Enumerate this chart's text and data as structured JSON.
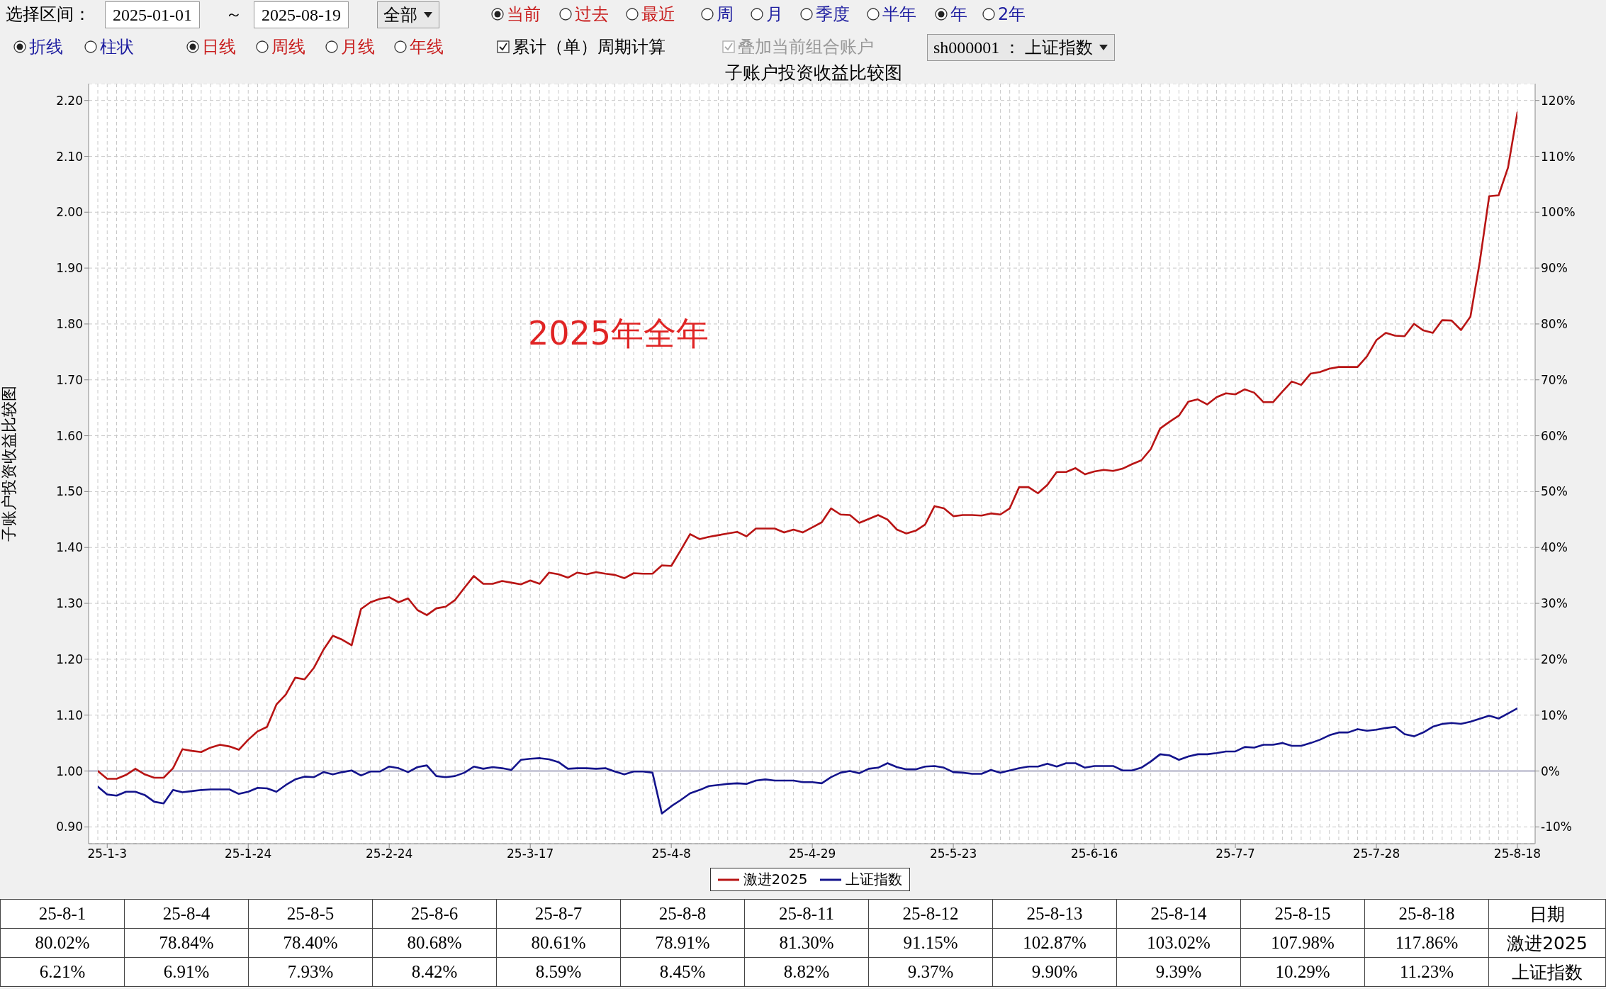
{
  "chart_data": {
    "type": "line",
    "title": "子账户投资收益比较图",
    "ylabel": "子账户投资收益比较图",
    "categories": [
      null,
      "25-1-3",
      null,
      null,
      null,
      null,
      null,
      null,
      null,
      null,
      null,
      null,
      null,
      null,
      null,
      null,
      "25-1-24",
      null,
      null,
      null,
      null,
      null,
      null,
      null,
      null,
      null,
      null,
      null,
      null,
      null,
      null,
      "25-2-24",
      null,
      null,
      null,
      null,
      null,
      null,
      null,
      null,
      null,
      null,
      null,
      null,
      null,
      null,
      "25-3-17",
      null,
      null,
      null,
      null,
      null,
      null,
      null,
      null,
      null,
      null,
      null,
      null,
      null,
      null,
      "25-4-8",
      null,
      null,
      null,
      null,
      null,
      null,
      null,
      null,
      null,
      null,
      null,
      null,
      null,
      null,
      "25-4-29",
      null,
      null,
      null,
      null,
      null,
      null,
      null,
      null,
      null,
      null,
      null,
      null,
      null,
      null,
      "25-5-23",
      null,
      null,
      null,
      null,
      null,
      null,
      null,
      null,
      null,
      null,
      null,
      null,
      null,
      null,
      "25-6-16",
      null,
      null,
      null,
      null,
      null,
      null,
      null,
      null,
      null,
      null,
      null,
      null,
      null,
      null,
      "25-7-7",
      null,
      null,
      null,
      null,
      null,
      null,
      null,
      null,
      null,
      null,
      null,
      null,
      null,
      null,
      "25-7-28",
      null,
      null,
      null,
      null,
      null,
      null,
      null,
      null,
      null,
      null,
      null,
      null,
      null,
      null,
      "25-8-18"
    ],
    "series": [
      {
        "name": "激进2025",
        "color": "#b81414",
        "axis": "y2",
        "values": [
          0.0,
          -1.4,
          -1.4,
          -0.7,
          0.4,
          -0.6,
          -1.2,
          -1.2,
          0.5,
          3.9,
          3.6,
          3.4,
          4.2,
          4.7,
          4.4,
          3.8,
          5.6,
          7.1,
          7.9,
          11.9,
          13.7,
          16.7,
          16.4,
          18.5,
          21.7,
          24.2,
          23.5,
          22.5,
          29.0,
          30.2,
          30.8,
          31.1,
          30.2,
          30.9,
          28.8,
          27.9,
          29.1,
          29.4,
          30.6,
          32.8,
          34.9,
          33.5,
          33.5,
          34.0,
          33.7,
          33.4,
          34.1,
          33.5,
          35.5,
          35.2,
          34.6,
          35.5,
          35.2,
          35.6,
          35.3,
          35.1,
          34.5,
          35.4,
          35.3,
          35.3,
          36.8,
          36.7,
          39.5,
          42.4,
          41.5,
          41.9,
          42.2,
          42.5,
          42.8,
          42.0,
          43.4,
          43.4,
          43.4,
          42.7,
          43.2,
          42.7,
          43.6,
          44.5,
          47.0,
          45.9,
          45.8,
          44.4,
          45.1,
          45.8,
          45.0,
          43.2,
          42.5,
          43.0,
          44.1,
          47.4,
          47.0,
          45.6,
          45.8,
          45.8,
          45.7,
          46.1,
          45.9,
          47.0,
          50.8,
          50.8,
          49.7,
          51.2,
          53.5,
          53.5,
          54.2,
          53.1,
          53.6,
          53.9,
          53.7,
          54.1,
          54.9,
          55.6,
          57.6,
          61.3,
          62.5,
          63.6,
          66.1,
          66.5,
          65.6,
          66.9,
          67.6,
          67.4,
          68.3,
          67.7,
          66.0,
          66.0,
          67.9,
          69.7,
          69.1,
          71.1,
          71.4,
          72.0,
          72.3,
          72.3,
          72.3,
          74.2,
          77.1,
          78.4,
          77.9,
          77.8,
          80.02,
          78.84,
          78.4,
          80.68,
          80.61,
          78.91,
          81.3,
          91.15,
          102.87,
          103.02,
          107.98,
          117.86
        ]
      },
      {
        "name": "上证指数",
        "color": "#14148c",
        "axis": "y2",
        "values": [
          -2.8,
          -4.2,
          -4.4,
          -3.7,
          -3.7,
          -4.3,
          -5.5,
          -5.8,
          -3.4,
          -3.8,
          -3.6,
          -3.4,
          -3.3,
          -3.3,
          -3.3,
          -4.1,
          -3.7,
          -3.0,
          -3.1,
          -3.7,
          -2.5,
          -1.5,
          -1.0,
          -1.1,
          -0.2,
          -0.6,
          -0.2,
          0.1,
          -0.8,
          -0.1,
          -0.1,
          0.8,
          0.5,
          -0.2,
          0.7,
          1.0,
          -0.9,
          -1.1,
          -0.9,
          -0.3,
          0.8,
          0.4,
          0.7,
          0.5,
          0.2,
          2.0,
          2.2,
          2.3,
          2.1,
          1.6,
          0.4,
          0.5,
          0.5,
          0.4,
          0.5,
          -0.1,
          -0.6,
          -0.1,
          -0.1,
          -0.3,
          -7.6,
          -6.3,
          -5.2,
          -4.0,
          -3.4,
          -2.7,
          -2.5,
          -2.3,
          -2.2,
          -2.3,
          -1.7,
          -1.5,
          -1.7,
          -1.7,
          -1.7,
          -2.0,
          -2.0,
          -2.2,
          -1.1,
          -0.3,
          0.0,
          -0.4,
          0.4,
          0.6,
          1.4,
          0.7,
          0.3,
          0.3,
          0.8,
          0.9,
          0.6,
          -0.2,
          -0.3,
          -0.5,
          -0.5,
          0.2,
          -0.3,
          0.1,
          0.5,
          0.8,
          0.8,
          1.3,
          0.8,
          1.4,
          1.4,
          0.6,
          0.9,
          0.9,
          0.9,
          0.1,
          0.1,
          0.6,
          1.7,
          3.0,
          2.8,
          2.0,
          2.6,
          3.0,
          3.0,
          3.2,
          3.5,
          3.5,
          4.3,
          4.2,
          4.7,
          4.7,
          5.0,
          4.5,
          4.5,
          5.0,
          5.6,
          6.4,
          6.9,
          6.9,
          7.5,
          7.2,
          7.4,
          7.7,
          7.9,
          6.6,
          6.21,
          6.91,
          7.93,
          8.42,
          8.59,
          8.45,
          8.82,
          9.37,
          9.9,
          9.39,
          10.29,
          11.23
        ]
      }
    ],
    "ylim": [
      0.87,
      2.23
    ],
    "yticks": [
      {
        "value": 0.9,
        "label": "0.90"
      },
      {
        "value": 1.0,
        "label": "1.00"
      },
      {
        "value": 1.1,
        "label": "1.10"
      },
      {
        "value": 1.2,
        "label": "1.20"
      },
      {
        "value": 1.3,
        "label": "1.30"
      },
      {
        "value": 1.4,
        "label": "1.40"
      },
      {
        "value": 1.5,
        "label": "1.50"
      },
      {
        "value": 1.6,
        "label": "1.60"
      },
      {
        "value": 1.7,
        "label": "1.70"
      },
      {
        "value": 1.8,
        "label": "1.80"
      },
      {
        "value": 1.9,
        "label": "1.90"
      },
      {
        "value": 2.0,
        "label": "2.00"
      },
      {
        "value": 2.1,
        "label": "2.10"
      },
      {
        "value": 2.2,
        "label": "2.20"
      }
    ],
    "y2lim": [
      -13,
      123
    ],
    "y2ticks": [
      {
        "value": -10,
        "label": "-10%"
      },
      {
        "value": 0,
        "label": "0%"
      },
      {
        "value": 10,
        "label": "10%"
      },
      {
        "value": 20,
        "label": "20%"
      },
      {
        "value": 30,
        "label": "30%"
      },
      {
        "value": 40,
        "label": "40%"
      },
      {
        "value": 50,
        "label": "50%"
      },
      {
        "value": 60,
        "label": "60%"
      },
      {
        "value": 70,
        "label": "70%"
      },
      {
        "value": 80,
        "label": "80%"
      },
      {
        "value": 90,
        "label": "90%"
      },
      {
        "value": 100,
        "label": "100%"
      },
      {
        "value": 110,
        "label": "110%"
      },
      {
        "value": 120,
        "label": "120%"
      }
    ],
    "ref_lines": [
      {
        "axis": "y",
        "value": 1.0,
        "color": "#8a8aaa",
        "line_style": "solid"
      }
    ],
    "grid": true,
    "legend": "bottom",
    "annotations": [
      "2025年全年",
      "日期",
      "选择区间：",
      "2025-01-01",
      "～",
      "2025-08-19",
      "全部",
      "当前",
      "过去",
      "最近",
      "周",
      "月",
      "季度",
      "半年",
      "年",
      "2年",
      "折线",
      "柱状",
      "日线",
      "周线",
      "月线",
      "年线",
      "累计（单）周期计算",
      "叠加当前组合账户",
      "sh000001 ： 上证指数",
      "25-8-1",
      "25-8-4",
      "25-8-5",
      "25-8-6",
      "25-8-7",
      "25-8-8",
      "25-8-11",
      "25-8-12",
      "25-8-13",
      "25-8-14",
      "25-8-15",
      "25-8-18",
      "80.02%",
      "78.84%",
      "78.40%",
      "80.68%",
      "80.61%",
      "78.91%",
      "81.30%",
      "91.15%",
      "102.87%",
      "103.02%",
      "107.98%",
      "117.86%",
      "6.21%",
      "6.91%",
      "7.93%",
      "8.42%",
      "8.59%",
      "8.45%",
      "8.82%",
      "9.37%",
      "9.90%",
      "9.39%",
      "10.29%",
      "11.23%"
    ]
  }
}
